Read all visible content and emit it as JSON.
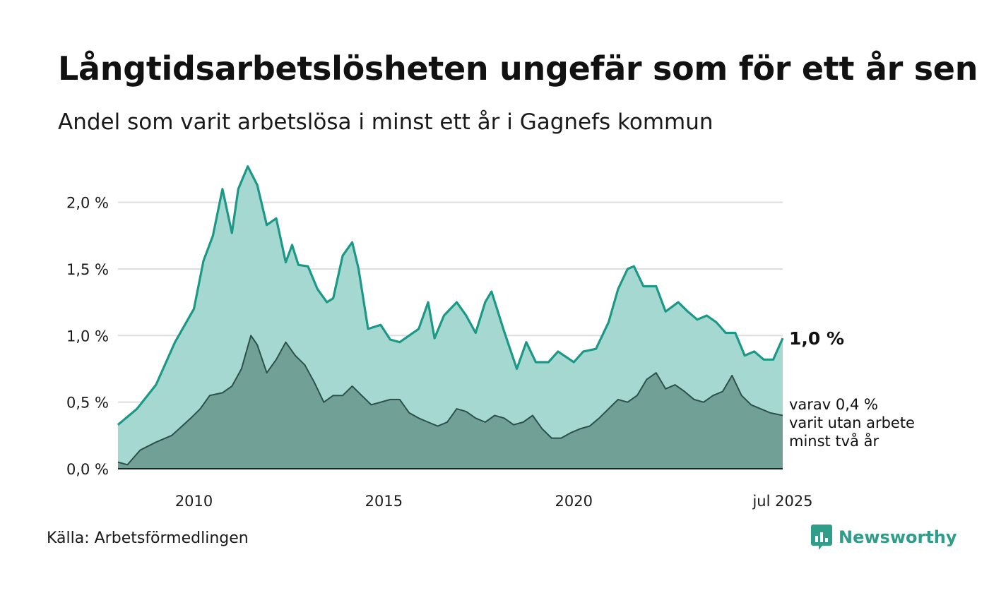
{
  "header": {
    "title": "Långtidsarbetslösheten ungefär som för ett år sen",
    "subtitle": "Andel som varit arbetslösa i minst ett år i Gagnefs kommun"
  },
  "footer": {
    "source": "Källa: Arbetsförmedlingen",
    "logo_text": "Newsworthy"
  },
  "colors": {
    "series1_fill": "#a5d8d1",
    "series1_line": "#1c9886",
    "series2_fill": "#70a096",
    "series2_line": "#2c5149",
    "grid": "#dddddd"
  },
  "chart_data": {
    "type": "area",
    "ylim": [
      0,
      2.3
    ],
    "y_ticks": [
      {
        "value": 0,
        "label": "0,0 %"
      },
      {
        "value": 0.5,
        "label": "0,5 %"
      },
      {
        "value": 1.0,
        "label": "1,0 %"
      },
      {
        "value": 1.5,
        "label": "1,5 %"
      },
      {
        "value": 2.0,
        "label": "2,0 %"
      }
    ],
    "x_start": "2008-01",
    "x_end": "2025-07",
    "x_ticks": [
      {
        "x": "2010-01",
        "label": "2010"
      },
      {
        "x": "2015-01",
        "label": "2015"
      },
      {
        "x": "2020-01",
        "label": "2020"
      },
      {
        "x": "2025-07",
        "label": "jul 2025"
      }
    ],
    "grid": true,
    "end_label_main": "1,0 %",
    "end_label_sub": [
      "varav 0,4 %",
      "varit utan arbete",
      "minst två år"
    ],
    "series": [
      {
        "points": [
          [
            "2008-01",
            0.33
          ],
          [
            "2008-07",
            0.45
          ],
          [
            "2009-01",
            0.63
          ],
          [
            "2009-07",
            0.95
          ],
          [
            "2010-01",
            1.2
          ],
          [
            "2010-04",
            1.56
          ],
          [
            "2010-07",
            1.75
          ],
          [
            "2010-10",
            2.1
          ],
          [
            "2011-01",
            1.77
          ],
          [
            "2011-03",
            2.1
          ],
          [
            "2011-06",
            2.27
          ],
          [
            "2011-09",
            2.13
          ],
          [
            "2011-12",
            1.83
          ],
          [
            "2012-03",
            1.88
          ],
          [
            "2012-06",
            1.55
          ],
          [
            "2012-08",
            1.68
          ],
          [
            "2012-10",
            1.53
          ],
          [
            "2013-01",
            1.52
          ],
          [
            "2013-04",
            1.35
          ],
          [
            "2013-07",
            1.25
          ],
          [
            "2013-09",
            1.28
          ],
          [
            "2013-12",
            1.6
          ],
          [
            "2014-03",
            1.7
          ],
          [
            "2014-05",
            1.5
          ],
          [
            "2014-08",
            1.05
          ],
          [
            "2014-12",
            1.08
          ],
          [
            "2015-03",
            0.97
          ],
          [
            "2015-06",
            0.95
          ],
          [
            "2015-09",
            1.0
          ],
          [
            "2015-12",
            1.05
          ],
          [
            "2016-03",
            1.25
          ],
          [
            "2016-05",
            0.98
          ],
          [
            "2016-08",
            1.15
          ],
          [
            "2016-12",
            1.25
          ],
          [
            "2017-03",
            1.15
          ],
          [
            "2017-06",
            1.02
          ],
          [
            "2017-09",
            1.25
          ],
          [
            "2017-11",
            1.33
          ],
          [
            "2018-03",
            1.03
          ],
          [
            "2018-07",
            0.75
          ],
          [
            "2018-10",
            0.95
          ],
          [
            "2019-01",
            0.8
          ],
          [
            "2019-05",
            0.8
          ],
          [
            "2019-08",
            0.88
          ],
          [
            "2020-01",
            0.8
          ],
          [
            "2020-04",
            0.88
          ],
          [
            "2020-08",
            0.9
          ],
          [
            "2020-12",
            1.1
          ],
          [
            "2021-03",
            1.35
          ],
          [
            "2021-06",
            1.5
          ],
          [
            "2021-08",
            1.52
          ],
          [
            "2021-11",
            1.37
          ],
          [
            "2022-03",
            1.37
          ],
          [
            "2022-06",
            1.18
          ],
          [
            "2022-10",
            1.25
          ],
          [
            "2023-01",
            1.18
          ],
          [
            "2023-04",
            1.12
          ],
          [
            "2023-07",
            1.15
          ],
          [
            "2023-10",
            1.1
          ],
          [
            "2024-01",
            1.02
          ],
          [
            "2024-04",
            1.02
          ],
          [
            "2024-07",
            0.85
          ],
          [
            "2024-10",
            0.88
          ],
          [
            "2025-01",
            0.82
          ],
          [
            "2025-04",
            0.82
          ],
          [
            "2025-07",
            0.98
          ]
        ]
      },
      {
        "points": [
          [
            "2008-01",
            0.05
          ],
          [
            "2008-04",
            0.03
          ],
          [
            "2008-08",
            0.14
          ],
          [
            "2009-01",
            0.2
          ],
          [
            "2009-06",
            0.25
          ],
          [
            "2009-12",
            0.38
          ],
          [
            "2010-03",
            0.45
          ],
          [
            "2010-06",
            0.55
          ],
          [
            "2010-10",
            0.57
          ],
          [
            "2011-01",
            0.62
          ],
          [
            "2011-04",
            0.75
          ],
          [
            "2011-07",
            1.0
          ],
          [
            "2011-09",
            0.93
          ],
          [
            "2011-12",
            0.72
          ],
          [
            "2012-03",
            0.82
          ],
          [
            "2012-06",
            0.95
          ],
          [
            "2012-09",
            0.85
          ],
          [
            "2012-12",
            0.78
          ],
          [
            "2013-03",
            0.65
          ],
          [
            "2013-06",
            0.5
          ],
          [
            "2013-09",
            0.55
          ],
          [
            "2013-12",
            0.55
          ],
          [
            "2014-03",
            0.62
          ],
          [
            "2014-06",
            0.55
          ],
          [
            "2014-09",
            0.48
          ],
          [
            "2014-12",
            0.5
          ],
          [
            "2015-03",
            0.52
          ],
          [
            "2015-06",
            0.52
          ],
          [
            "2015-09",
            0.42
          ],
          [
            "2015-12",
            0.38
          ],
          [
            "2016-03",
            0.35
          ],
          [
            "2016-06",
            0.32
          ],
          [
            "2016-09",
            0.35
          ],
          [
            "2016-12",
            0.45
          ],
          [
            "2017-03",
            0.43
          ],
          [
            "2017-06",
            0.38
          ],
          [
            "2017-09",
            0.35
          ],
          [
            "2017-12",
            0.4
          ],
          [
            "2018-03",
            0.38
          ],
          [
            "2018-06",
            0.33
          ],
          [
            "2018-09",
            0.35
          ],
          [
            "2018-12",
            0.4
          ],
          [
            "2019-03",
            0.3
          ],
          [
            "2019-06",
            0.23
          ],
          [
            "2019-09",
            0.23
          ],
          [
            "2019-12",
            0.27
          ],
          [
            "2020-03",
            0.3
          ],
          [
            "2020-06",
            0.32
          ],
          [
            "2020-09",
            0.38
          ],
          [
            "2020-12",
            0.45
          ],
          [
            "2021-03",
            0.52
          ],
          [
            "2021-06",
            0.5
          ],
          [
            "2021-09",
            0.55
          ],
          [
            "2021-12",
            0.67
          ],
          [
            "2022-03",
            0.72
          ],
          [
            "2022-06",
            0.6
          ],
          [
            "2022-09",
            0.63
          ],
          [
            "2022-12",
            0.58
          ],
          [
            "2023-03",
            0.52
          ],
          [
            "2023-06",
            0.5
          ],
          [
            "2023-09",
            0.55
          ],
          [
            "2023-12",
            0.58
          ],
          [
            "2024-03",
            0.7
          ],
          [
            "2024-06",
            0.55
          ],
          [
            "2024-09",
            0.48
          ],
          [
            "2024-12",
            0.45
          ],
          [
            "2025-03",
            0.42
          ],
          [
            "2025-07",
            0.4
          ]
        ]
      }
    ]
  }
}
